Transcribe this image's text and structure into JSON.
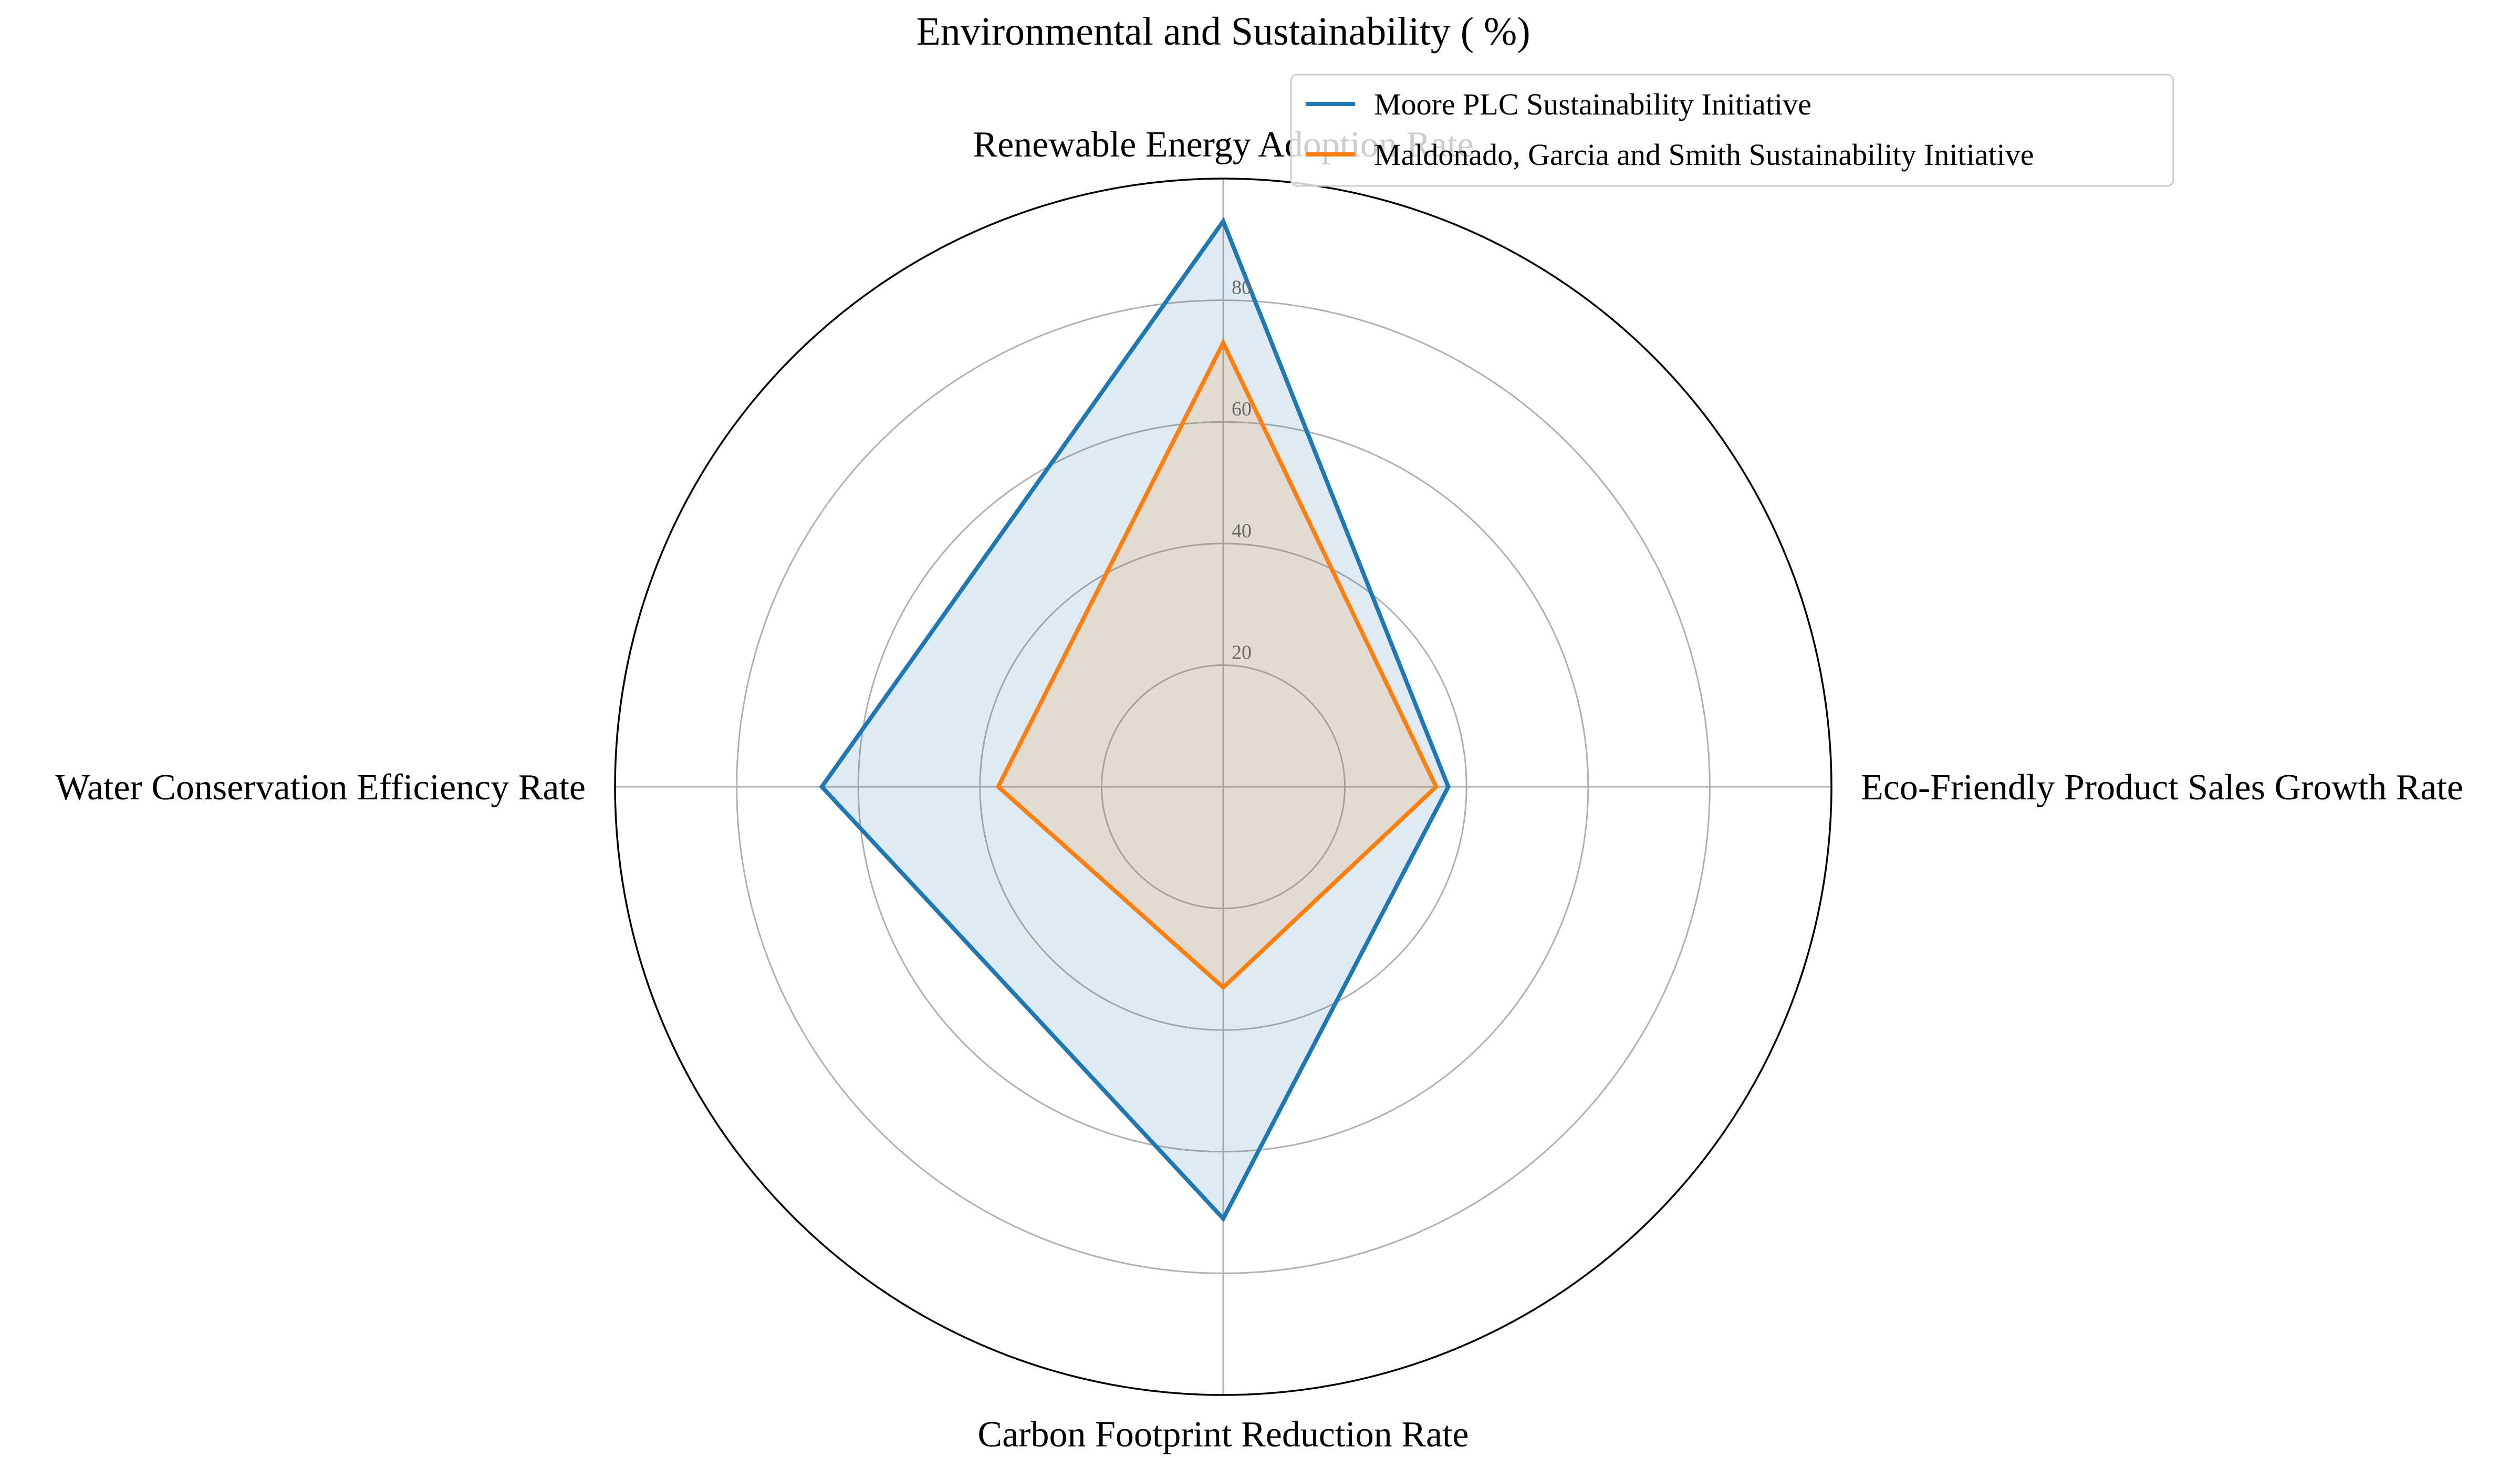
{
  "chart_data": {
    "type": "radar",
    "title": "Environmental and Sustainability ( %)",
    "categories": [
      "Renewable Energy Adoption Rate",
      "Eco-Friendly Product Sales Growth Rate",
      "Carbon Footprint Reduction Rate",
      "Water Conservation Efficiency Rate"
    ],
    "rlim": [
      0,
      100
    ],
    "rticks": [
      "20",
      "40",
      "60",
      "80"
    ],
    "rtick_values": [
      20,
      40,
      60,
      80
    ],
    "grid": true,
    "legend_position": "top-right",
    "series": [
      {
        "name": "Moore PLC Sustainability Initiative",
        "values": [
          93,
          37,
          71,
          66
        ],
        "color": "#1f77b4",
        "fill_opacity": 0.15
      },
      {
        "name": "Maldonado, Garcia and Smith Sustainability Initiative",
        "values": [
          73,
          35,
          33,
          37
        ],
        "color": "#ff7f0e",
        "fill_opacity": 0.15
      }
    ]
  }
}
